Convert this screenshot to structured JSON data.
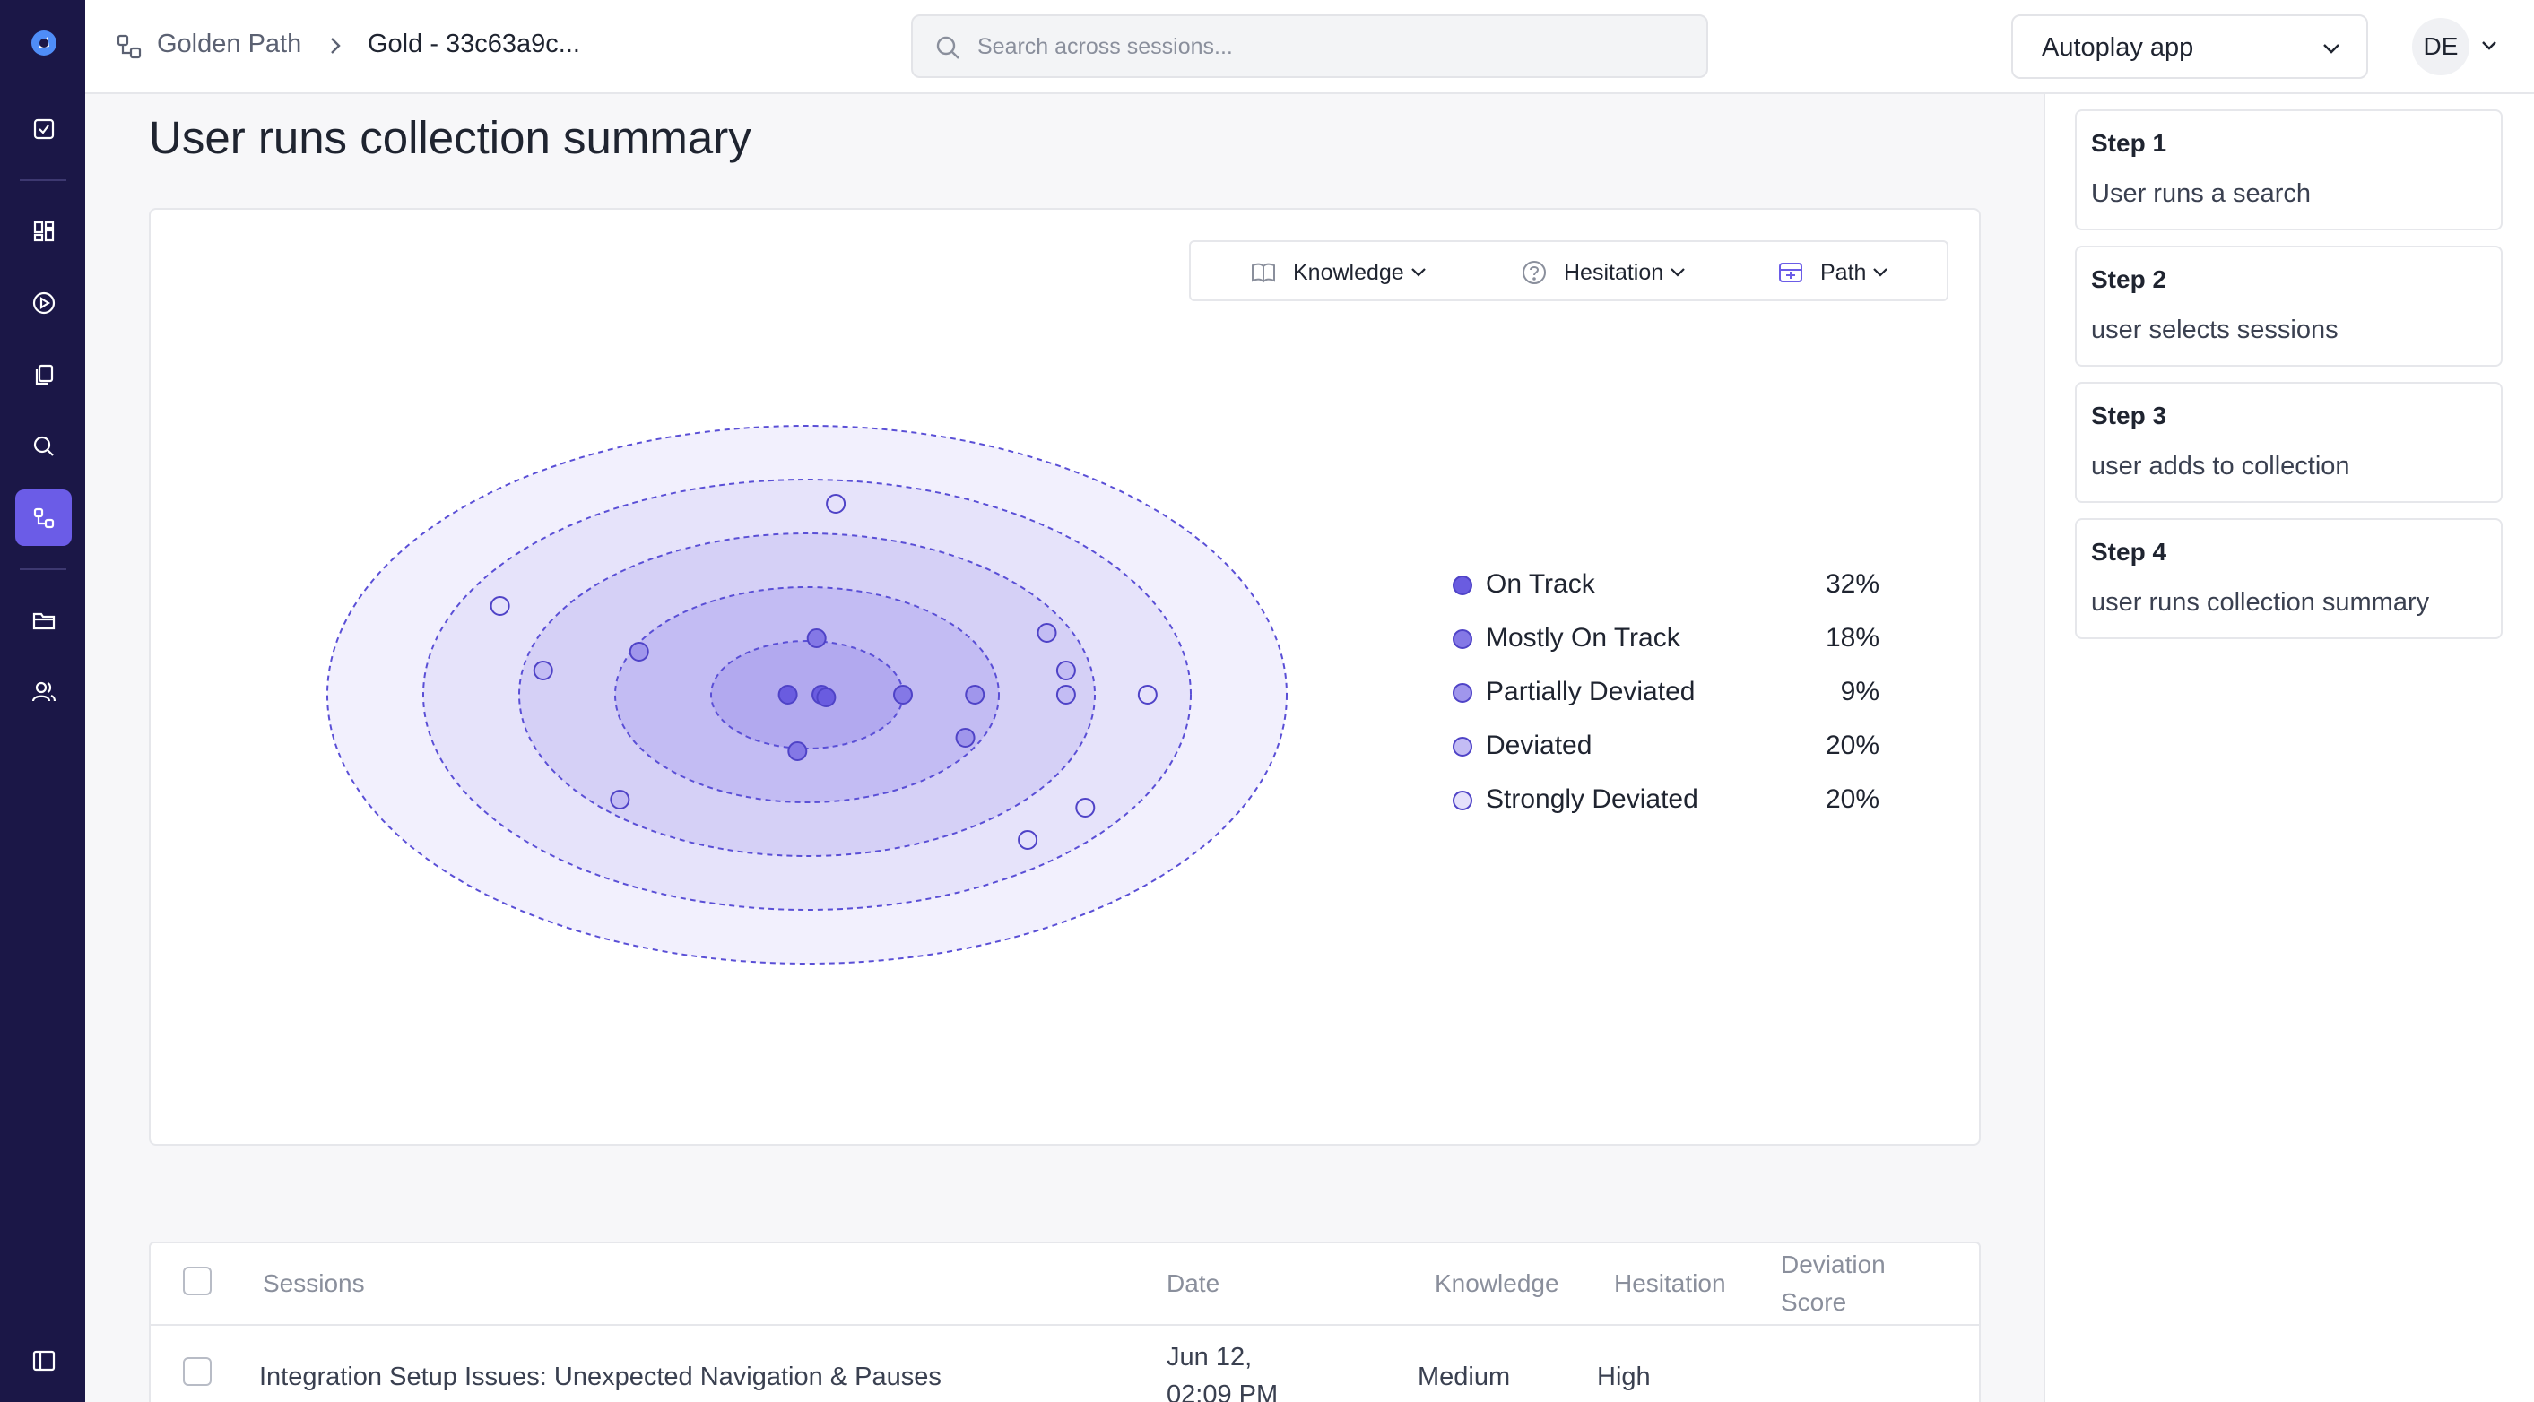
{
  "nav": {
    "items": [
      {
        "name": "logo",
        "icon": "logo-icon"
      },
      {
        "name": "tasks",
        "icon": "checkbox-icon"
      },
      {
        "name": "dashboard",
        "icon": "grid-icon"
      },
      {
        "name": "sessions",
        "icon": "play-circle-icon"
      },
      {
        "name": "documents",
        "icon": "copy-icon"
      },
      {
        "name": "search",
        "icon": "search-icon"
      },
      {
        "name": "golden-path",
        "icon": "path-icon",
        "active": true
      },
      {
        "name": "collections",
        "icon": "folder-icon"
      },
      {
        "name": "users",
        "icon": "users-icon"
      },
      {
        "name": "collapse",
        "icon": "sidebar-toggle-icon"
      }
    ]
  },
  "header": {
    "breadcrumb_root": "Golden Path",
    "breadcrumb_current": "Gold - 33c63a9c...",
    "search_placeholder": "Search across sessions...",
    "app_select": "Autoplay app",
    "avatar": "DE"
  },
  "main": {
    "title": "User runs collection summary",
    "filters": {
      "knowledge": "Knowledge",
      "hesitation": "Hesitation",
      "path": "Path"
    },
    "legend": [
      {
        "label": "On Track",
        "pct": "32%",
        "color": "#6a5ce0"
      },
      {
        "label": "Mostly On Track",
        "pct": "18%",
        "color": "#8478e6"
      },
      {
        "label": "Partially Deviated",
        "pct": "9%",
        "color": "#a096ec"
      },
      {
        "label": "Deviated",
        "pct": "20%",
        "color": "#c3bcf4"
      },
      {
        "label": "Strongly Deviated",
        "pct": "20%",
        "color": "#e5e1fb"
      }
    ]
  },
  "chart_data": {
    "type": "scatter",
    "title": "",
    "xlabel": "",
    "ylabel": "",
    "rings": [
      {
        "category": "On Track",
        "fill": "#b2a9ef"
      },
      {
        "category": "Mostly On Track",
        "fill": "#c3bcf3"
      },
      {
        "category": "Partially Deviated",
        "fill": "#d5d0f6"
      },
      {
        "category": "Deviated",
        "fill": "#e6e3fa"
      },
      {
        "category": "Strongly Deviated",
        "fill": "#f2f0fd"
      }
    ],
    "points": [
      {
        "x": 0.03,
        "y": 0.0,
        "category": "On Track"
      },
      {
        "x": 0.04,
        "y": -0.01,
        "category": "On Track"
      },
      {
        "x": -0.04,
        "y": 0.0,
        "category": "On Track"
      },
      {
        "x": 0.02,
        "y": 0.21,
        "category": "Mostly On Track"
      },
      {
        "x": -0.02,
        "y": -0.21,
        "category": "Mostly On Track"
      },
      {
        "x": 0.2,
        "y": 0.0,
        "category": "Mostly On Track"
      },
      {
        "x": -0.35,
        "y": 0.16,
        "category": "Partially Deviated"
      },
      {
        "x": 0.35,
        "y": 0.0,
        "category": "Partially Deviated"
      },
      {
        "x": 0.33,
        "y": -0.16,
        "category": "Partially Deviated"
      },
      {
        "x": 0.5,
        "y": 0.23,
        "category": "Deviated"
      },
      {
        "x": 0.54,
        "y": 0.09,
        "category": "Deviated"
      },
      {
        "x": 0.54,
        "y": 0.0,
        "category": "Deviated"
      },
      {
        "x": -0.55,
        "y": 0.09,
        "category": "Deviated"
      },
      {
        "x": -0.39,
        "y": -0.39,
        "category": "Deviated"
      },
      {
        "x": 0.06,
        "y": 0.71,
        "category": "Strongly Deviated"
      },
      {
        "x": -0.64,
        "y": 0.33,
        "category": "Strongly Deviated"
      },
      {
        "x": 0.71,
        "y": 0.0,
        "category": "Strongly Deviated"
      },
      {
        "x": 0.58,
        "y": -0.42,
        "category": "Strongly Deviated"
      },
      {
        "x": 0.46,
        "y": -0.54,
        "category": "Strongly Deviated"
      }
    ]
  },
  "table": {
    "headers": [
      "Sessions",
      "Date",
      "Knowledge",
      "Hesitation",
      "Deviation Score"
    ],
    "rows": [
      {
        "session": "Integration Setup Issues: Unexpected Navigation & Pauses",
        "date": "Jun 12, 02:09 PM",
        "knowledge": "Medium",
        "hesitation": "High",
        "score": ""
      }
    ]
  },
  "steps": [
    {
      "title": "Step 1",
      "desc": "User runs a search"
    },
    {
      "title": "Step 2",
      "desc": "user selects sessions"
    },
    {
      "title": "Step 3",
      "desc": "user adds to collection"
    },
    {
      "title": "Step 4",
      "desc": "user runs collection summary"
    }
  ]
}
